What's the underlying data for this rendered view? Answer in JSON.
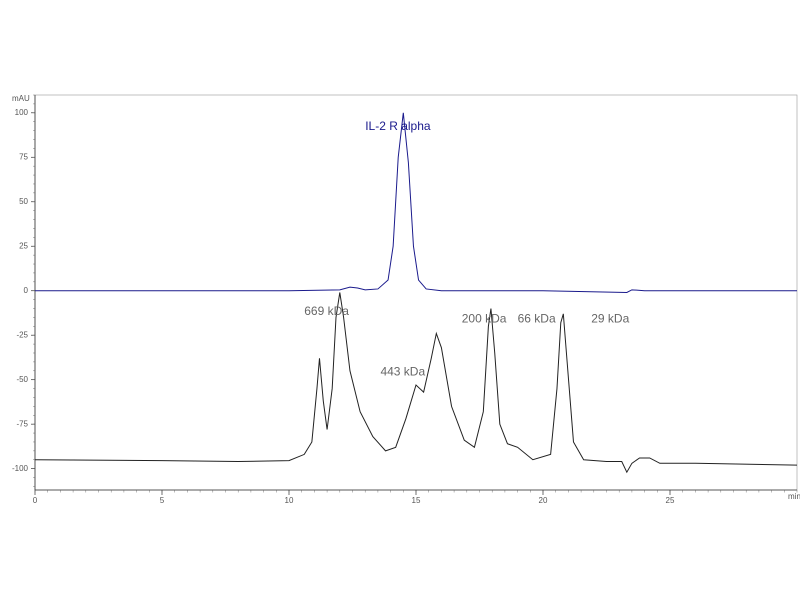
{
  "chart_data": {
    "type": "line",
    "y_label": "mAU",
    "x_label": "min",
    "xlim": [
      0,
      30
    ],
    "ylim": [
      -112,
      110
    ],
    "xticks": [
      0,
      5,
      10,
      15,
      20,
      25
    ],
    "yticks": [
      -100,
      -75,
      -50,
      -25,
      0,
      25,
      50,
      75,
      100
    ],
    "series": [
      {
        "color": "#1a1a8c",
        "x": [
          0,
          5,
          10,
          12,
          12.4,
          12.7,
          13,
          13.5,
          13.9,
          14.1,
          14.3,
          14.5,
          14.7,
          14.9,
          15.1,
          15.4,
          16,
          20,
          23.3,
          23.5,
          24,
          30
        ],
        "values": [
          0,
          0,
          0,
          0.5,
          2,
          1.5,
          0.5,
          1,
          6,
          25,
          75,
          100,
          72,
          25,
          6,
          1,
          0,
          0,
          -1,
          0.5,
          0,
          0
        ]
      },
      {
        "color": "#222222",
        "x": [
          0,
          5,
          8,
          10,
          10.6,
          10.9,
          11.1,
          11.2,
          11.35,
          11.5,
          11.7,
          11.85,
          12.0,
          12.15,
          12.4,
          12.8,
          13.3,
          13.8,
          14.2,
          14.6,
          15.0,
          15.3,
          15.6,
          15.8,
          16.0,
          16.4,
          16.9,
          17.3,
          17.65,
          17.85,
          17.95,
          18.1,
          18.3,
          18.6,
          19.0,
          19.6,
          20.3,
          20.55,
          20.7,
          20.8,
          20.95,
          21.2,
          21.6,
          22.5,
          23.1,
          23.3,
          23.5,
          23.8,
          24.2,
          24.6,
          25.5,
          26,
          30
        ],
        "values": [
          -95,
          -95.5,
          -96,
          -95.5,
          -92,
          -85,
          -55,
          -38,
          -62,
          -78,
          -55,
          -15,
          -1,
          -15,
          -45,
          -68,
          -82,
          -90,
          -88,
          -72,
          -53,
          -57,
          -38,
          -24,
          -32,
          -65,
          -84,
          -88,
          -68,
          -20,
          -10,
          -35,
          -75,
          -86,
          -88,
          -95,
          -92,
          -55,
          -18,
          -13,
          -40,
          -85,
          -95,
          -96,
          -96,
          -102,
          -97,
          -94,
          -94,
          -97,
          -97,
          -97,
          -98
        ]
      }
    ],
    "annotations": [
      {
        "text": "IL-2 R alpha",
        "x": 13.0,
        "y": 92,
        "color": "#1a1a8c"
      },
      {
        "text": "669 kDa",
        "x": 10.6,
        "y": -12,
        "color": "#666666"
      },
      {
        "text": "443 kDa",
        "x": 13.6,
        "y": -46,
        "color": "#666666"
      },
      {
        "text": "200 kDa",
        "x": 16.8,
        "y": -16,
        "color": "#666666"
      },
      {
        "text": "66 kDa",
        "x": 19.0,
        "y": -16,
        "color": "#666666"
      },
      {
        "text": "29 kDa",
        "x": 21.9,
        "y": -16,
        "color": "#666666"
      }
    ]
  }
}
